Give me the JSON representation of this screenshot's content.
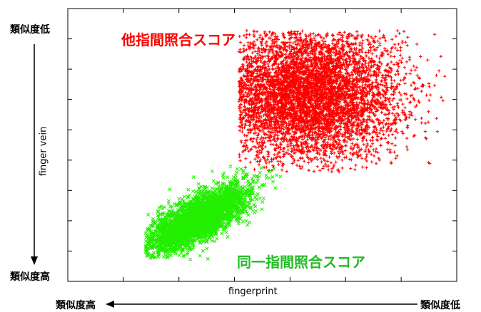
{
  "chart_data": {
    "type": "scatter",
    "xlabel": "fingerprint",
    "ylabel": "finger vein",
    "xlim": [
      0,
      1
    ],
    "ylim": [
      0,
      1
    ],
    "grid": false,
    "x_direction": {
      "low_end": "類似度高",
      "high_end": "類似度低"
    },
    "y_direction": {
      "top_end": "類似度低",
      "bottom_end": "類似度高"
    },
    "annotations": [
      {
        "text": "他指間照合スコア",
        "color": "#ff0000"
      },
      {
        "text": "同一指間照合スコア",
        "color": "#22bb22"
      }
    ],
    "series": [
      {
        "marker": "plus",
        "color": "#ff0000",
        "center": [
          0.615,
          0.685
        ],
        "spread": [
          0.12,
          0.12
        ],
        "range_x": [
          0.44,
          0.97
        ],
        "range_y": [
          0.4,
          0.92
        ],
        "count": 6500
      },
      {
        "marker": "cross",
        "color": "#22ee00",
        "center": [
          0.335,
          0.23
        ],
        "spread": [
          0.07,
          0.06
        ],
        "range_x": [
          0.2,
          0.55
        ],
        "range_y": [
          0.08,
          0.58
        ],
        "count": 3500
      }
    ]
  }
}
